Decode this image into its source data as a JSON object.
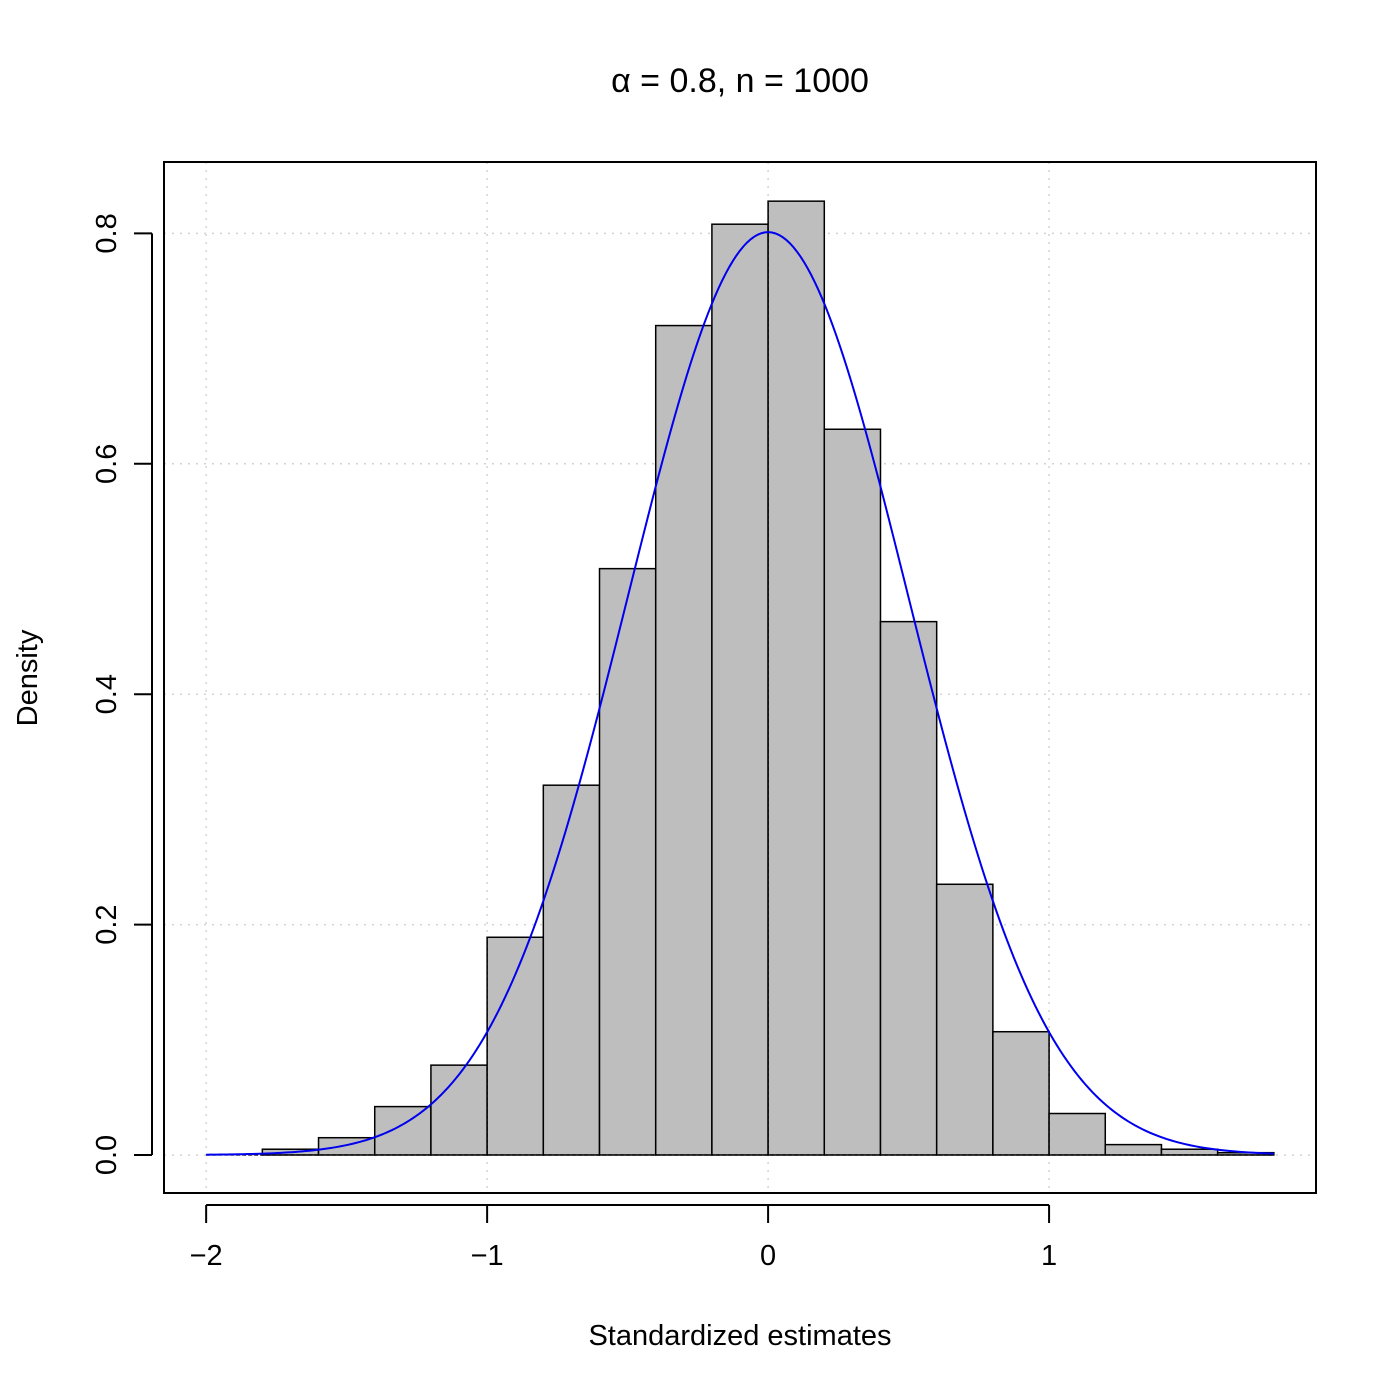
{
  "chart_data": {
    "type": "bar",
    "subtype": "histogram-with-density-curve",
    "title": "α = 0.8, n = 1000",
    "xlabel": "Standardized estimates",
    "ylabel": "Density",
    "xlim": [
      -2.15,
      1.95
    ],
    "ylim": [
      -0.033,
      0.862
    ],
    "xticks": [
      -2,
      -1,
      0,
      1
    ],
    "xtick_labels": [
      "−2",
      "−1",
      "0",
      "1"
    ],
    "yticks": [
      0.0,
      0.2,
      0.4,
      0.6,
      0.8
    ],
    "ytick_labels": [
      "0.0",
      "0.2",
      "0.4",
      "0.6",
      "0.8"
    ],
    "grid": true,
    "bins": [
      {
        "x0": -2.0,
        "x1": -1.8,
        "value": 0.0
      },
      {
        "x0": -1.8,
        "x1": -1.6,
        "value": 0.005
      },
      {
        "x0": -1.6,
        "x1": -1.4,
        "value": 0.015
      },
      {
        "x0": -1.4,
        "x1": -1.2,
        "value": 0.042
      },
      {
        "x0": -1.2,
        "x1": -1.0,
        "value": 0.078
      },
      {
        "x0": -1.0,
        "x1": -0.8,
        "value": 0.189
      },
      {
        "x0": -0.8,
        "x1": -0.6,
        "value": 0.321
      },
      {
        "x0": -0.6,
        "x1": -0.4,
        "value": 0.509
      },
      {
        "x0": -0.4,
        "x1": -0.2,
        "value": 0.72
      },
      {
        "x0": -0.2,
        "x1": 0.0,
        "value": 0.808
      },
      {
        "x0": 0.0,
        "x1": 0.2,
        "value": 0.828
      },
      {
        "x0": 0.2,
        "x1": 0.4,
        "value": 0.63
      },
      {
        "x0": 0.4,
        "x1": 0.6,
        "value": 0.463
      },
      {
        "x0": 0.6,
        "x1": 0.8,
        "value": 0.235
      },
      {
        "x0": 0.8,
        "x1": 1.0,
        "value": 0.107
      },
      {
        "x0": 1.0,
        "x1": 1.2,
        "value": 0.036
      },
      {
        "x0": 1.2,
        "x1": 1.4,
        "value": 0.009
      },
      {
        "x0": 1.4,
        "x1": 1.6,
        "value": 0.005
      },
      {
        "x0": 1.6,
        "x1": 1.8,
        "value": 0.002
      }
    ],
    "density_curve": {
      "mean": 0.0,
      "sd": 0.498,
      "range": [
        -2.0,
        1.8
      ],
      "color": "#0000ee"
    },
    "reference_lines": [
      -1,
      0,
      1
    ],
    "colors": {
      "bar_fill": "#bebebe",
      "bar_stroke": "#000000",
      "grid": "#d3d3d3"
    }
  }
}
